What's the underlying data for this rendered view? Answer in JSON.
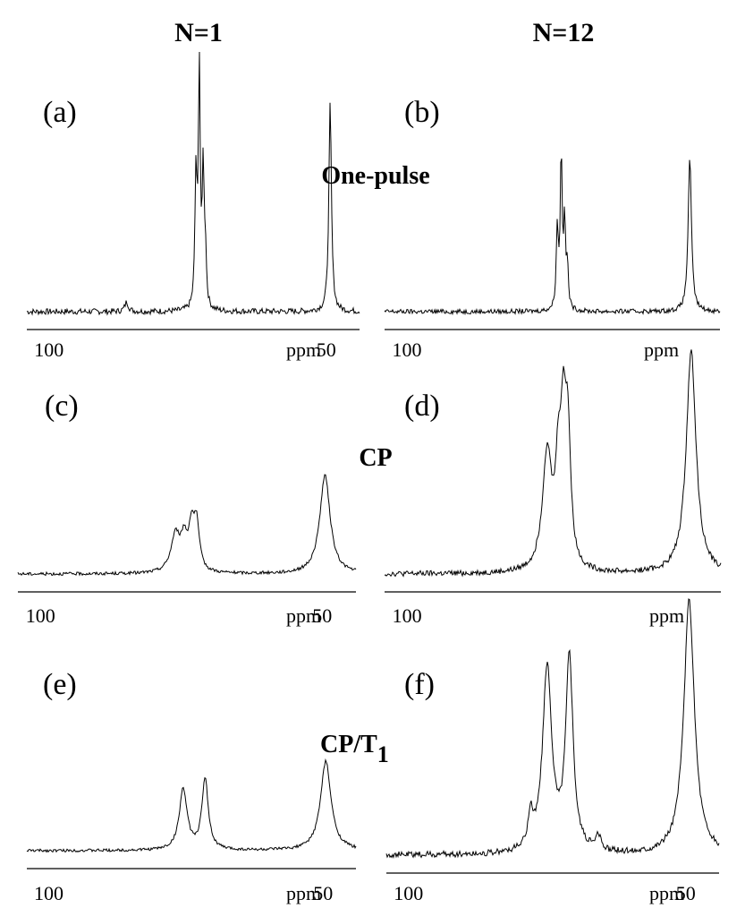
{
  "figure": {
    "column_headers": [
      "N=1",
      "N=12"
    ],
    "row_labels": [
      "One-pulse",
      "CP",
      "CP/T",
      "1"
    ]
  },
  "chart_data": [
    {
      "type": "line",
      "panel_label": "(a)",
      "row": "One-pulse",
      "column": "N=1",
      "xlabel": "ppm",
      "x_ticks": [
        100,
        50
      ],
      "x_reversed": true,
      "xlim": [
        104,
        44
      ],
      "ylim": [
        0,
        1
      ],
      "baseline": 0.03,
      "peaks": [
        {
          "x": 73.5,
          "y": 0.55,
          "w": 0.22
        },
        {
          "x": 72.9,
          "y": 1.0,
          "w": 0.2
        },
        {
          "x": 72.2,
          "y": 0.57,
          "w": 0.2
        },
        {
          "x": 71.8,
          "y": 0.22,
          "w": 0.2
        },
        {
          "x": 86.0,
          "y": 0.04,
          "w": 0.4
        },
        {
          "x": 49.3,
          "y": 0.87,
          "w": 0.28
        }
      ]
    },
    {
      "type": "line",
      "panel_label": "(b)",
      "row": "One-pulse",
      "column": "N=12",
      "xlabel": "ppm",
      "x_ticks": [
        100
      ],
      "x_reversed": true,
      "xlim": [
        104,
        44
      ],
      "ylim": [
        0,
        1
      ],
      "baseline": 0.03,
      "peaks": [
        {
          "x": 73.1,
          "y": 0.43,
          "w": 0.22
        },
        {
          "x": 72.4,
          "y": 0.82,
          "w": 0.2
        },
        {
          "x": 71.8,
          "y": 0.45,
          "w": 0.2
        },
        {
          "x": 71.3,
          "y": 0.22,
          "w": 0.2
        },
        {
          "x": 49.4,
          "y": 0.82,
          "w": 0.35
        }
      ]
    },
    {
      "type": "line",
      "panel_label": "(c)",
      "row": "CP",
      "column": "N=1",
      "xlabel": "ppm",
      "x_ticks": [
        100,
        50
      ],
      "x_reversed": true,
      "xlim": [
        104,
        44
      ],
      "ylim": [
        0,
        1
      ],
      "baseline": 0.06,
      "peaks": [
        {
          "x": 76.0,
          "y": 0.3,
          "w": 1.0
        },
        {
          "x": 74.5,
          "y": 0.22,
          "w": 0.6
        },
        {
          "x": 73.2,
          "y": 0.32,
          "w": 0.6
        },
        {
          "x": 72.3,
          "y": 0.36,
          "w": 0.6
        },
        {
          "x": 49.5,
          "y": 0.78,
          "w": 1.1
        }
      ]
    },
    {
      "type": "line",
      "panel_label": "(d)",
      "row": "CP",
      "column": "N=12",
      "xlabel": "ppm",
      "x_ticks": [
        100
      ],
      "x_reversed": true,
      "xlim": [
        104,
        44
      ],
      "ylim": [
        0,
        1
      ],
      "baseline": 0.05,
      "peaks": [
        {
          "x": 75.0,
          "y": 0.52,
          "w": 1.0
        },
        {
          "x": 73.0,
          "y": 0.38,
          "w": 0.6
        },
        {
          "x": 72.1,
          "y": 0.55,
          "w": 0.6
        },
        {
          "x": 71.3,
          "y": 0.55,
          "w": 0.6
        },
        {
          "x": 49.3,
          "y": 1.0,
          "w": 1.05
        }
      ]
    },
    {
      "type": "line",
      "panel_label": "(e)",
      "row": "CP/T1",
      "column": "N=1",
      "xlabel": "ppm",
      "x_ticks": [
        100,
        50
      ],
      "x_reversed": true,
      "xlim": [
        104,
        44
      ],
      "ylim": [
        0,
        1
      ],
      "baseline": 0.07,
      "peaks": [
        {
          "x": 75.5,
          "y": 0.52,
          "w": 0.85
        },
        {
          "x": 71.5,
          "y": 0.6,
          "w": 0.7
        },
        {
          "x": 49.5,
          "y": 0.76,
          "w": 1.15
        }
      ]
    },
    {
      "type": "line",
      "panel_label": "(f)",
      "row": "CP/T1",
      "column": "N=12",
      "xlabel": "ppm",
      "x_ticks": [
        100,
        50
      ],
      "x_reversed": true,
      "xlim": [
        104,
        44
      ],
      "ylim": [
        0,
        1
      ],
      "baseline": 0.06,
      "peaks": [
        {
          "x": 78.0,
          "y": 0.13,
          "w": 0.5
        },
        {
          "x": 75.0,
          "y": 0.72,
          "w": 1.0
        },
        {
          "x": 71.0,
          "y": 0.76,
          "w": 0.8
        },
        {
          "x": 65.8,
          "y": 0.06,
          "w": 0.5
        },
        {
          "x": 49.4,
          "y": 1.0,
          "w": 1.15
        }
      ]
    }
  ]
}
